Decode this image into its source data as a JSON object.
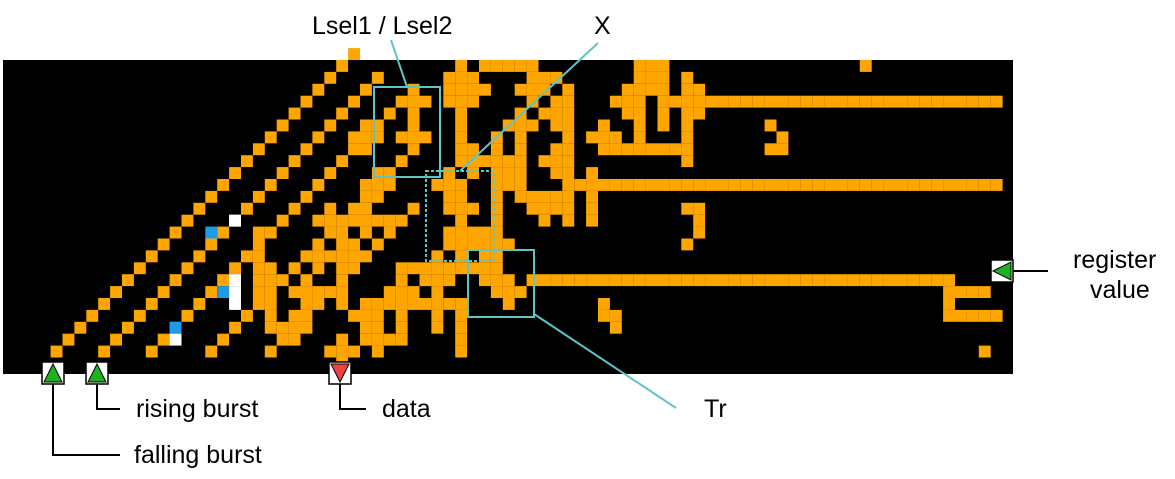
{
  "labels": {
    "lsel": "Lsel1 / Lsel2",
    "x": "X",
    "register_1": "register",
    "register_2": "value",
    "tr": "Tr",
    "data": "data",
    "rising_burst": "rising burst",
    "falling_burst": "falling burst"
  },
  "colors": {
    "background": "#000000",
    "wire": "#ffa500",
    "blue_cell": "#1e9be8",
    "white_cell": "#ffffff",
    "box": "#5fc4c4",
    "input_arrow": "#1fb21f",
    "data_arrow": "#f04040"
  }
}
